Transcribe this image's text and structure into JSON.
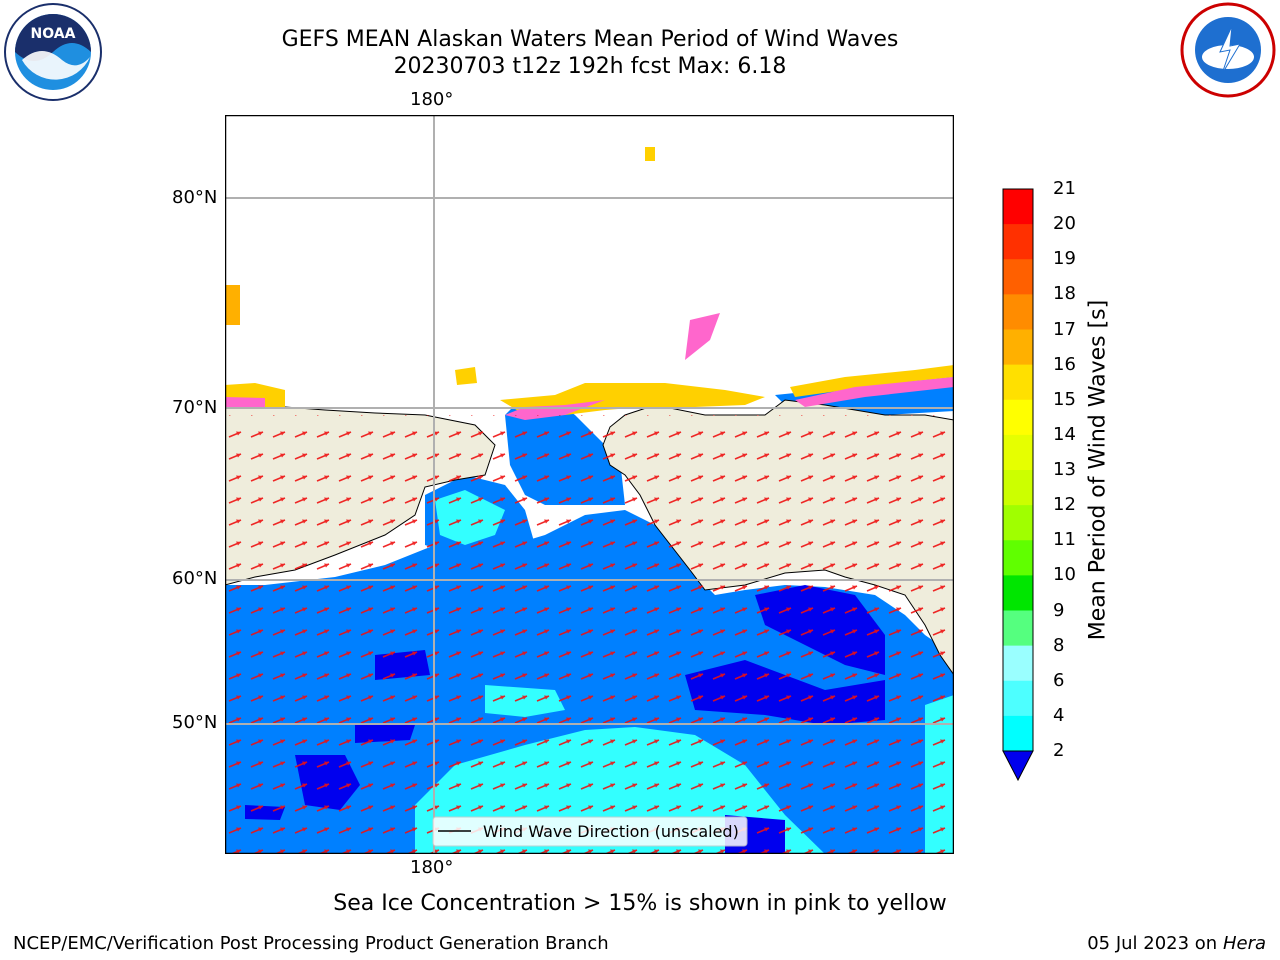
{
  "title_line1": "GEFS MEAN Alaskan Waters Mean Period of Wind Waves",
  "title_line2": "20230703 t12z 192h fcst   Max: 6.18",
  "axes": {
    "top_lon_label": "180°",
    "bottom_lon_label": "180°",
    "lat_labels": [
      "80°N",
      "70°N",
      "60°N",
      "50°N"
    ]
  },
  "legend": {
    "label": "Wind Wave Direction (unscaled)"
  },
  "colorbar": {
    "label": "Mean Period of Wind Waves [s]",
    "ticks": [
      "21",
      "20",
      "19",
      "18",
      "17",
      "16",
      "15",
      "14",
      "13",
      "12",
      "11",
      "10",
      "9",
      "8",
      "6",
      "4",
      "2"
    ],
    "colors": [
      "#ff0000",
      "#ff3000",
      "#ff6000",
      "#ff8c00",
      "#ffb000",
      "#ffe000",
      "#ffff00",
      "#e6ff00",
      "#ccff00",
      "#a0ff00",
      "#60ff00",
      "#00e600",
      "#55ff7f",
      "#9affff",
      "#4dffff",
      "#00ffff",
      "#0080ff"
    ],
    "under_color": "#0000ee"
  },
  "colors": {
    "ocean_blue": "#0080ff",
    "ocean_dark": "#0000ee",
    "ocean_cyan": "#33ffff",
    "land": "#efeddc",
    "ice_pink": "#ff66cc",
    "ice_yellow": "#ffd000",
    "arrow_red": "#ee1111",
    "grid": "#b0b0b0"
  },
  "footer_note": "Sea Ice Concentration > 15% is shown in pink to yellow",
  "credit": "NCEP/EMC/Verification Post Processing Product Generation Branch",
  "date_text": "05 Jul 2023 on ",
  "date_host": "Hera",
  "logos": {
    "noaa_text": "NOAA"
  }
}
